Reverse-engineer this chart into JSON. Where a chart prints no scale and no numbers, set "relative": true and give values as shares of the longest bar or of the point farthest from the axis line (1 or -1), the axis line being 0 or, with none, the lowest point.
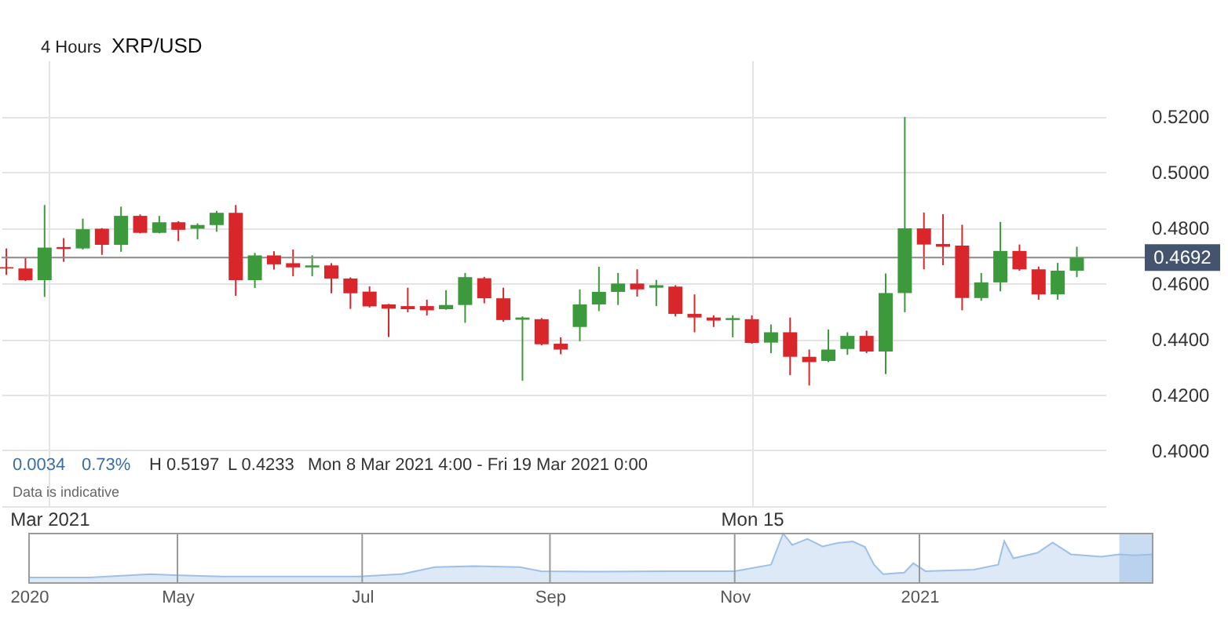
{
  "chart_data": [
    {
      "type": "candlestick",
      "title": "XRP/USD",
      "subtitle": "4 Hours",
      "x": [
        "2021-03-08T12:00",
        "2021-03-08T16:00",
        "2021-03-08T20:00",
        "2021-03-09T00:00",
        "2021-03-09T04:00",
        "2021-03-09T08:00",
        "2021-03-09T12:00",
        "2021-03-09T16:00",
        "2021-03-09T20:00",
        "2021-03-10T00:00",
        "2021-03-10T04:00",
        "2021-03-10T08:00",
        "2021-03-10T12:00",
        "2021-03-10T16:00",
        "2021-03-10T20:00",
        "2021-03-11T00:00",
        "2021-03-11T04:00",
        "2021-03-11T08:00",
        "2021-03-11T12:00",
        "2021-03-11T16:00",
        "2021-03-11T20:00",
        "2021-03-12T00:00",
        "2021-03-12T04:00",
        "2021-03-12T08:00",
        "2021-03-12T12:00",
        "2021-03-12T16:00",
        "2021-03-12T20:00",
        "2021-03-13T00:00",
        "2021-03-13T04:00",
        "2021-03-13T08:00",
        "2021-03-13T12:00",
        "2021-03-13T16:00",
        "2021-03-13T20:00",
        "2021-03-14T00:00",
        "2021-03-14T04:00",
        "2021-03-14T08:00",
        "2021-03-14T12:00",
        "2021-03-14T16:00",
        "2021-03-14T20:00",
        "2021-03-15T00:00",
        "2021-03-15T04:00",
        "2021-03-15T08:00",
        "2021-03-15T12:00",
        "2021-03-15T16:00",
        "2021-03-15T20:00",
        "2021-03-16T00:00",
        "2021-03-16T04:00",
        "2021-03-16T08:00",
        "2021-03-16T12:00",
        "2021-03-16T16:00",
        "2021-03-16T20:00",
        "2021-03-17T00:00",
        "2021-03-17T04:00",
        "2021-03-17T08:00",
        "2021-03-17T12:00",
        "2021-03-17T16:00",
        "2021-03-17T20:00"
      ],
      "ohlc": [
        [
          0.4658,
          0.4725,
          0.463,
          0.4653
        ],
        [
          0.4653,
          0.4691,
          0.4608,
          0.4611
        ],
        [
          0.4611,
          0.4881,
          0.4551,
          0.4728
        ],
        [
          0.473,
          0.4762,
          0.4677,
          0.4723
        ],
        [
          0.4725,
          0.4832,
          0.4721,
          0.4794
        ],
        [
          0.4796,
          0.4798,
          0.4702,
          0.4738
        ],
        [
          0.4738,
          0.4875,
          0.4713,
          0.4842
        ],
        [
          0.4842,
          0.4847,
          0.4779,
          0.4781
        ],
        [
          0.4781,
          0.4842,
          0.4779,
          0.4819
        ],
        [
          0.4819,
          0.4823,
          0.4751,
          0.4792
        ],
        [
          0.4796,
          0.4815,
          0.4758,
          0.4809
        ],
        [
          0.4809,
          0.486,
          0.4785,
          0.4853
        ],
        [
          0.4853,
          0.4881,
          0.4555,
          0.4611
        ],
        [
          0.4611,
          0.4709,
          0.4583,
          0.47
        ],
        [
          0.47,
          0.4715,
          0.4649,
          0.4668
        ],
        [
          0.4672,
          0.4721,
          0.4625,
          0.4657
        ],
        [
          0.4657,
          0.47,
          0.4625,
          0.4664
        ],
        [
          0.4664,
          0.4672,
          0.4564,
          0.4617
        ],
        [
          0.4617,
          0.4621,
          0.4508,
          0.4564
        ],
        [
          0.457,
          0.4589,
          0.4513,
          0.4517
        ],
        [
          0.4524,
          0.4526,
          0.4407,
          0.4509
        ],
        [
          0.4518,
          0.4584,
          0.4496,
          0.4507
        ],
        [
          0.4518,
          0.4541,
          0.4484,
          0.4503
        ],
        [
          0.4507,
          0.4575,
          0.4505,
          0.4522
        ],
        [
          0.4522,
          0.4637,
          0.4458,
          0.4622
        ],
        [
          0.4618,
          0.4623,
          0.4528,
          0.4546
        ],
        [
          0.4546,
          0.4584,
          0.4462,
          0.4468
        ],
        [
          0.4469,
          0.4481,
          0.425,
          0.4477
        ],
        [
          0.4471,
          0.4475,
          0.4377,
          0.4381
        ],
        [
          0.4383,
          0.4406,
          0.4345,
          0.4362
        ],
        [
          0.4443,
          0.4578,
          0.4392,
          0.4524
        ],
        [
          0.4524,
          0.4659,
          0.45,
          0.4569
        ],
        [
          0.4569,
          0.4637,
          0.4522,
          0.4599
        ],
        [
          0.4599,
          0.465,
          0.4552,
          0.4578
        ],
        [
          0.4584,
          0.4612,
          0.4518,
          0.4593
        ],
        [
          0.4588,
          0.4593,
          0.4481,
          0.449
        ],
        [
          0.449,
          0.456,
          0.4424,
          0.4477
        ],
        [
          0.4477,
          0.4485,
          0.4443,
          0.4466
        ],
        [
          0.4468,
          0.4485,
          0.4406,
          0.4475
        ],
        [
          0.4471,
          0.4485,
          0.4383,
          0.4386
        ],
        [
          0.4387,
          0.4452,
          0.4349,
          0.4424
        ],
        [
          0.4424,
          0.4477,
          0.427,
          0.4336
        ],
        [
          0.4336,
          0.4362,
          0.4233,
          0.4317
        ],
        [
          0.4321,
          0.4434,
          0.4317,
          0.4362
        ],
        [
          0.4364,
          0.4424,
          0.4343,
          0.4411
        ],
        [
          0.4411,
          0.443,
          0.4349,
          0.4355
        ],
        [
          0.4355,
          0.4635,
          0.4274,
          0.4565
        ],
        [
          0.4565,
          0.5197,
          0.4496,
          0.4797
        ],
        [
          0.4797,
          0.4854,
          0.465,
          0.4739
        ],
        [
          0.4741,
          0.4848,
          0.4665,
          0.4731
        ],
        [
          0.4735,
          0.481,
          0.4503,
          0.4547
        ],
        [
          0.4547,
          0.4637,
          0.4537,
          0.4603
        ],
        [
          0.4603,
          0.482,
          0.4571,
          0.4716
        ],
        [
          0.4716,
          0.4739,
          0.4645,
          0.465
        ],
        [
          0.465,
          0.466,
          0.4541,
          0.456
        ],
        [
          0.456,
          0.4673,
          0.4541,
          0.4645
        ],
        [
          0.4645,
          0.4731,
          0.4622,
          0.4692
        ]
      ],
      "colors": [
        "#d8262b",
        "#d8262b",
        "#3c9a3c",
        "#d8262b",
        "#3c9a3c",
        "#d8262b",
        "#3c9a3c",
        "#d8262b",
        "#3c9a3c",
        "#d8262b",
        "#3c9a3c",
        "#3c9a3c",
        "#d8262b",
        "#3c9a3c",
        "#d8262b",
        "#d8262b",
        "#3c9a3c",
        "#d8262b",
        "#d8262b",
        "#d8262b",
        "#d8262b",
        "#d8262b",
        "#d8262b",
        "#3c9a3c",
        "#3c9a3c",
        "#d8262b",
        "#d8262b",
        "#3c9a3c",
        "#d8262b",
        "#d8262b",
        "#3c9a3c",
        "#3c9a3c",
        "#3c9a3c",
        "#d8262b",
        "#3c9a3c",
        "#d8262b",
        "#d8262b",
        "#d8262b",
        "#3c9a3c",
        "#d8262b",
        "#3c9a3c",
        "#d8262b",
        "#d8262b",
        "#3c9a3c",
        "#3c9a3c",
        "#d8262b",
        "#3c9a3c",
        "#3c9a3c",
        "#d8262b",
        "#d8262b",
        "#d8262b",
        "#3c9a3c",
        "#3c9a3c",
        "#d8262b",
        "#d8262b",
        "#3c9a3c",
        "#3c9a3c"
      ],
      "xlim": [
        "2021-03-08T11:00",
        "2021-03-18T02:00"
      ],
      "xticks": [
        {
          "value": "2021-03-08T21:00",
          "label": "Mar 2021"
        },
        {
          "value": "2021-03-15T00:00",
          "label": "Mon 15"
        }
      ],
      "ylim": [
        0.38,
        0.54
      ],
      "yticks": [
        {
          "value": 0.4,
          "label": "0.4000"
        },
        {
          "value": 0.42,
          "label": "0.4200"
        },
        {
          "value": 0.44,
          "label": "0.4400"
        },
        {
          "value": 0.46,
          "label": "0.4600"
        },
        {
          "value": 0.48,
          "label": "0.4800"
        },
        {
          "value": 0.5,
          "label": "0.5000"
        },
        {
          "value": 0.52,
          "label": "0.5200"
        }
      ],
      "grid": true,
      "ref_lines": [
        {
          "axis": "y",
          "value": 0.4692,
          "label": "0.4692",
          "color": "#8a8a8a"
        }
      ],
      "annotations": [
        "0.0034",
        "0.73%",
        "H 0.5197",
        "L 0.4233",
        "Mon 8 Mar 2021 4:00 - Fri 19 Mar 2021 0:00",
        "Data is indicative"
      ]
    },
    {
      "type": "area",
      "relative": true,
      "x": [
        "2020-03-13",
        "2020-04-02",
        "2020-04-22",
        "2020-04-30",
        "2020-05-16",
        "2020-06-10",
        "2020-06-30",
        "2020-07-14",
        "2020-07-25",
        "2020-08-07",
        "2020-08-22",
        "2020-08-29",
        "2020-09-15",
        "2020-10-10",
        "2020-11-01",
        "2020-11-13",
        "2020-11-17",
        "2020-11-20",
        "2020-11-25",
        "2020-11-30",
        "2020-12-05",
        "2020-12-10",
        "2020-12-14",
        "2020-12-17",
        "2020-12-20",
        "2020-12-27",
        "2020-12-30",
        "2021-01-03",
        "2021-01-19",
        "2021-01-27",
        "2021-01-29",
        "2021-02-01",
        "2021-02-09",
        "2021-02-14",
        "2021-02-20",
        "2021-03-02",
        "2021-03-08",
        "2021-03-13",
        "2021-03-19"
      ],
      "values": [
        0.11,
        0.11,
        0.18,
        0.16,
        0.13,
        0.13,
        0.13,
        0.18,
        0.32,
        0.34,
        0.32,
        0.24,
        0.23,
        0.24,
        0.24,
        0.37,
        1.0,
        0.77,
        0.89,
        0.74,
        0.81,
        0.84,
        0.73,
        0.37,
        0.18,
        0.21,
        0.4,
        0.24,
        0.27,
        0.37,
        0.85,
        0.5,
        0.61,
        0.82,
        0.58,
        0.53,
        0.58,
        0.56,
        0.58
      ],
      "color": "#9fc0e6",
      "xlim": [
        "2020-03-13",
        "2021-03-19"
      ],
      "xticks": [
        {
          "value": "2020-03-13",
          "label": "2020"
        },
        {
          "value": "2020-05-01",
          "label": "May"
        },
        {
          "value": "2020-07-01",
          "label": "Jul"
        },
        {
          "value": "2020-09-01",
          "label": "Sep"
        },
        {
          "value": "2020-11-01",
          "label": "Nov"
        },
        {
          "value": "2021-01-01",
          "label": "2021"
        }
      ],
      "grid": "x",
      "bands": [
        {
          "axis": "x",
          "from": "2021-03-08",
          "to": "2021-03-19",
          "color": "#9dbfe6"
        }
      ]
    }
  ]
}
